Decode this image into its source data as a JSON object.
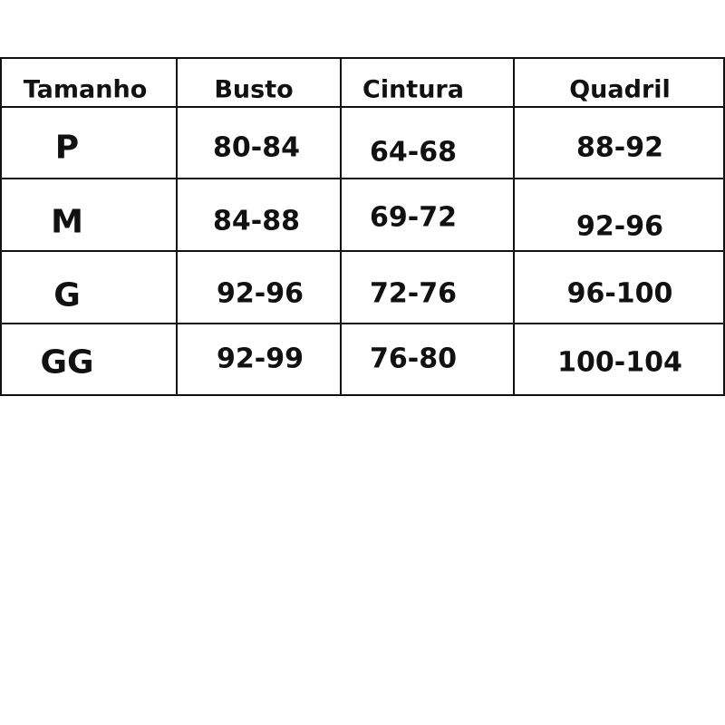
{
  "table": {
    "headers": [
      "Tamanho",
      "Busto",
      "Cintura",
      "Quadril"
    ],
    "rows": [
      [
        "P",
        "80-84",
        "64-68",
        "88-92"
      ],
      [
        "M",
        "84-88",
        "69-72",
        "92-96"
      ],
      [
        "G",
        "92-96",
        "72-76",
        "96-100"
      ],
      [
        "GG",
        "92-99",
        "76-80",
        "100-104"
      ]
    ]
  },
  "colors": {
    "line": "#111111",
    "text": "#111111",
    "background": "#ffffff"
  }
}
